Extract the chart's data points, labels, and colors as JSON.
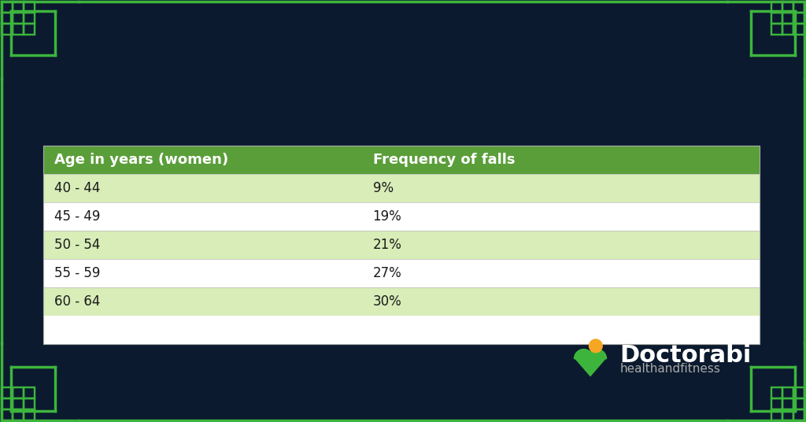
{
  "bg_color": "#0b1a2e",
  "border_color": "#3db53d",
  "table_header_color": "#5a9e3a",
  "table_row_colors": [
    "#d8edb8",
    "#ffffff",
    "#d8edb8",
    "#ffffff",
    "#d8edb8"
  ],
  "header_text_color": "#ffffff",
  "row_text_color": "#1a1a1a",
  "col1_header": "Age in years (women)",
  "col2_header": "Frequency of falls",
  "rows": [
    [
      "40 - 44",
      "9%"
    ],
    [
      "45 - 49",
      "19%"
    ],
    [
      "50 - 54",
      "21%"
    ],
    [
      "55 - 59",
      "27%"
    ],
    [
      "60 - 64",
      "30%"
    ]
  ],
  "logo_text": "Doctorabi",
  "logo_sub": "healthandfitness"
}
